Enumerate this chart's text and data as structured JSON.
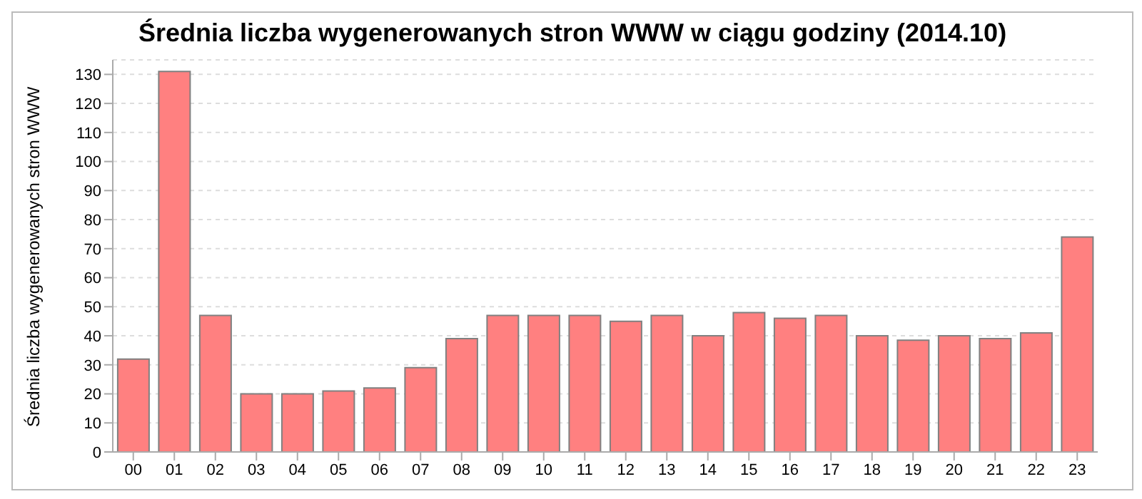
{
  "chart_data": {
    "type": "bar",
    "title": "Średnia liczba wygenerowanych stron WWW w ciągu godziny (2014.10)",
    "ylabel": "Średnia liczba wygenerowanych stron WWW",
    "categories": [
      "00",
      "01",
      "02",
      "03",
      "04",
      "05",
      "06",
      "07",
      "08",
      "09",
      "10",
      "11",
      "12",
      "13",
      "14",
      "15",
      "16",
      "17",
      "18",
      "19",
      "20",
      "21",
      "22",
      "23"
    ],
    "values": [
      32,
      131,
      47,
      20,
      20,
      21,
      22,
      29,
      39,
      47,
      47,
      47,
      45,
      47,
      40,
      48,
      46,
      47,
      40,
      38.5,
      40,
      39,
      41,
      74
    ],
    "color": "#ff8080",
    "ylim": [
      0,
      135
    ],
    "yticks": [
      0,
      10,
      20,
      30,
      40,
      50,
      60,
      70,
      80,
      90,
      100,
      110,
      120,
      130
    ],
    "grid": "y"
  }
}
